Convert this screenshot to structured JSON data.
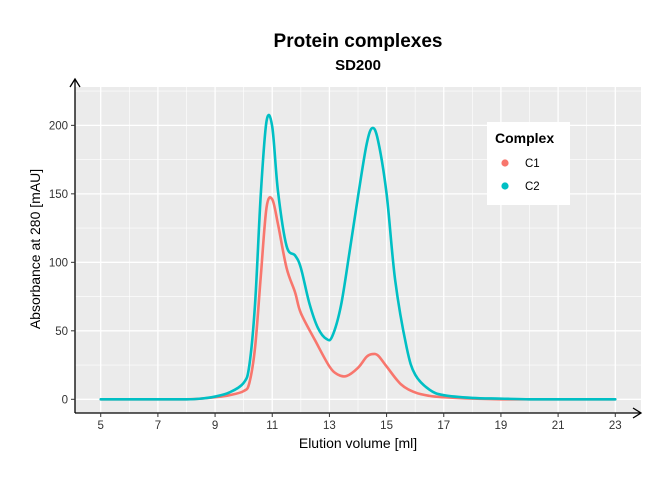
{
  "chart_data": {
    "type": "line",
    "title": "Protein complexes",
    "subtitle": "SD200",
    "xlabel": "Elution volume [ml]",
    "ylabel": "Absorbance at 280 [mAU]",
    "xlim": [
      4.1,
      23.9
    ],
    "ylim": [
      -10,
      228
    ],
    "xticks": [
      5,
      7,
      9,
      11,
      13,
      15,
      17,
      19,
      21,
      23
    ],
    "yticks": [
      0,
      50,
      100,
      150,
      200
    ],
    "grid": true,
    "legend": {
      "title": "Complex",
      "position": "top-right"
    },
    "series": [
      {
        "name": "C1",
        "color": "#F8766D",
        "x": [
          5,
          6,
          7,
          8,
          8.5,
          9,
          9.5,
          10,
          10.2,
          10.4,
          10.6,
          10.8,
          11,
          11.2,
          11.5,
          11.8,
          12.0,
          12.5,
          13.0,
          13.3,
          13.6,
          14.0,
          14.3,
          14.5,
          14.7,
          15.0,
          15.5,
          16,
          16.5,
          17,
          18,
          19,
          20,
          21,
          22,
          23
        ],
        "y": [
          0,
          0,
          0,
          0,
          0.5,
          1.5,
          3,
          6,
          12,
          38,
          90,
          140,
          146,
          128,
          96,
          78,
          63,
          43,
          24,
          18,
          17,
          23,
          31,
          33,
          32,
          24,
          11,
          5,
          2.5,
          1.5,
          0.5,
          0,
          0,
          0,
          0,
          0
        ]
      },
      {
        "name": "C2",
        "color": "#00BFC4",
        "x": [
          5,
          6,
          7,
          8,
          8.5,
          9,
          9.5,
          10,
          10.2,
          10.4,
          10.6,
          10.8,
          11,
          11.2,
          11.5,
          11.8,
          12.0,
          12.3,
          12.6,
          12.9,
          13.1,
          13.4,
          13.7,
          14.0,
          14.3,
          14.5,
          14.7,
          15.0,
          15.3,
          15.7,
          16,
          16.5,
          17,
          18,
          19,
          20,
          21,
          22,
          23
        ],
        "y": [
          0,
          0,
          0,
          0,
          0.5,
          2,
          5,
          12,
          25,
          70,
          150,
          203,
          199,
          152,
          112,
          105,
          96,
          70,
          52,
          44,
          46,
          68,
          107,
          148,
          186,
          198,
          189,
          150,
          87,
          38,
          18,
          7,
          3,
          1,
          0.5,
          0,
          0,
          0,
          0
        ]
      }
    ]
  }
}
